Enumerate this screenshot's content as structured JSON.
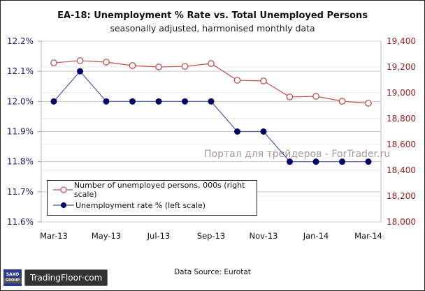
{
  "chart_data": {
    "type": "line",
    "title": "EA-18: Unemployment % Rate vs. Total Unemployed Persons",
    "subtitle": "seasonally adjusted, harmonised monthly data",
    "x": [
      "Mar-13",
      "Apr-13",
      "May-13",
      "Jun-13",
      "Jul-13",
      "Aug-13",
      "Sep-13",
      "Oct-13",
      "Nov-13",
      "Dec-13",
      "Jan-14",
      "Feb-14",
      "Mar-14"
    ],
    "x_tick_labels": [
      "Mar-13",
      "May-13",
      "Jul-13",
      "Sep-13",
      "Nov-13",
      "Jan-14",
      "Mar-14"
    ],
    "left_axis": {
      "range": [
        11.6,
        12.2
      ],
      "ticks": [
        12.2,
        12.1,
        12.0,
        11.9,
        11.8,
        11.7,
        11.6
      ],
      "tick_labels": [
        "12.2%",
        "12.1%",
        "12.0%",
        "11.9%",
        "11.8%",
        "11.7%",
        "11.6%"
      ],
      "color": "#1a1a6e"
    },
    "right_axis": {
      "range": [
        18000,
        19400
      ],
      "ticks": [
        19400,
        19200,
        19000,
        18800,
        18600,
        18400,
        18200,
        18000
      ],
      "tick_labels": [
        "19,400",
        "19,200",
        "19,000",
        "18,800",
        "18,600",
        "18,400",
        "18,200",
        "18,000"
      ],
      "color": "#9b1c1c"
    },
    "series": [
      {
        "name": "Number of unemployed persons, 000s (right scale)",
        "axis": "right",
        "color": "#c0504d",
        "marker": "open-circle",
        "values": [
          19232,
          19249,
          19238,
          19211,
          19200,
          19205,
          19227,
          19097,
          19092,
          18968,
          18973,
          18935,
          18919
        ]
      },
      {
        "name": "Unemployment rate % (left scale)",
        "axis": "left",
        "color": "#000066",
        "line_color": "#4a5aa8",
        "marker": "filled-circle",
        "values": [
          12.0,
          12.1,
          12.0,
          12.0,
          12.0,
          12.0,
          12.0,
          11.9,
          11.9,
          11.8,
          11.8,
          11.8,
          11.8
        ]
      }
    ],
    "grid": true,
    "legend_position": "bottom-left",
    "source": "Data Source: Eurotat"
  },
  "watermark": "Портал для трейдеров - ForTrader.ru",
  "footer": {
    "source": "Data Source: Eurotat",
    "logo_saxo_top": "SAXO",
    "logo_saxo_bottom": "GROUP",
    "logo_brand": "TradingFloor·com"
  }
}
